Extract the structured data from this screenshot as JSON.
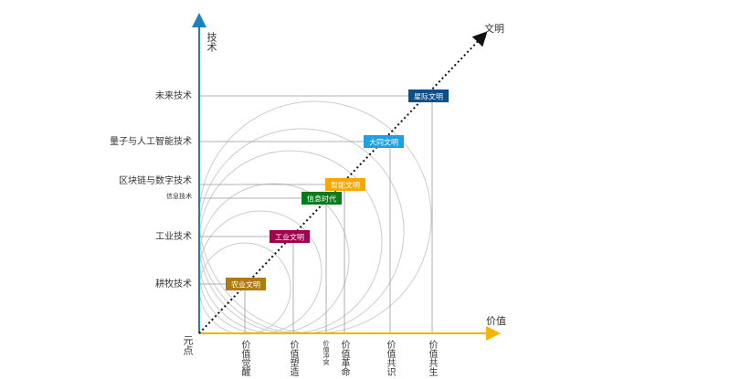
{
  "axes": {
    "y_label": "技术",
    "x_label": "价值",
    "origin": "元点",
    "diagonal_label": "文明"
  },
  "tech_levels": [
    "未来技术",
    "量子与人工智能技术",
    "区块链与数字技术",
    "信息技术",
    "工业技术",
    "耕牧技术"
  ],
  "civilizations": [
    "农业文明",
    "工业文明",
    "信息时代",
    "智能文明",
    "大同文明",
    "星际文明"
  ],
  "value_stages": [
    "价值觉醒",
    "价值塑造",
    "价值冲突",
    "价值革命",
    "价值共识",
    "价值共生"
  ]
}
